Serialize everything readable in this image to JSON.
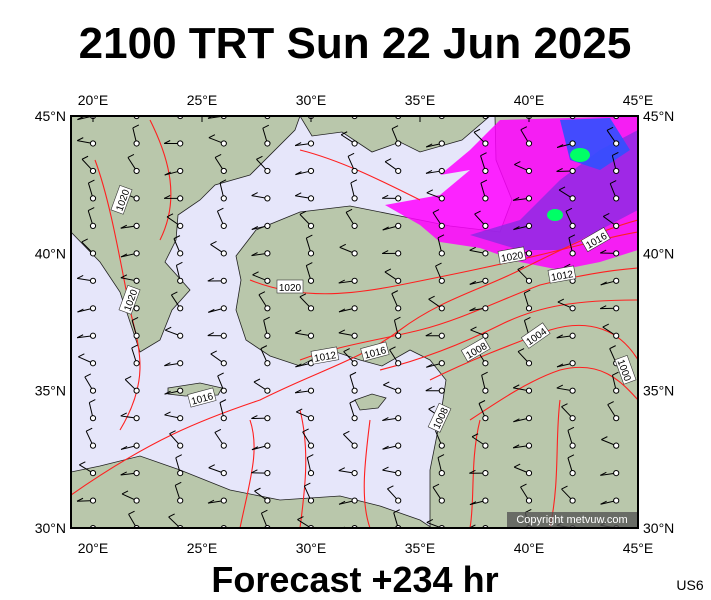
{
  "title": "2100 TRT Sun 22 Jun 2025",
  "lon_labels": [
    "20°E",
    "25°E",
    "30°E",
    "35°E",
    "40°E",
    "45°E"
  ],
  "lat_labels": [
    "45°N",
    "40°N",
    "35°N",
    "30°N"
  ],
  "isobar_labels": [
    "1020",
    "1020",
    "1020",
    "1020",
    "1012",
    "1016",
    "1016",
    "1012",
    "1016",
    "1008",
    "1004",
    "1008",
    "1000"
  ],
  "copyright": "Copyright metvuw.com",
  "footer": "Forecast +234 hr",
  "code": "US6"
}
